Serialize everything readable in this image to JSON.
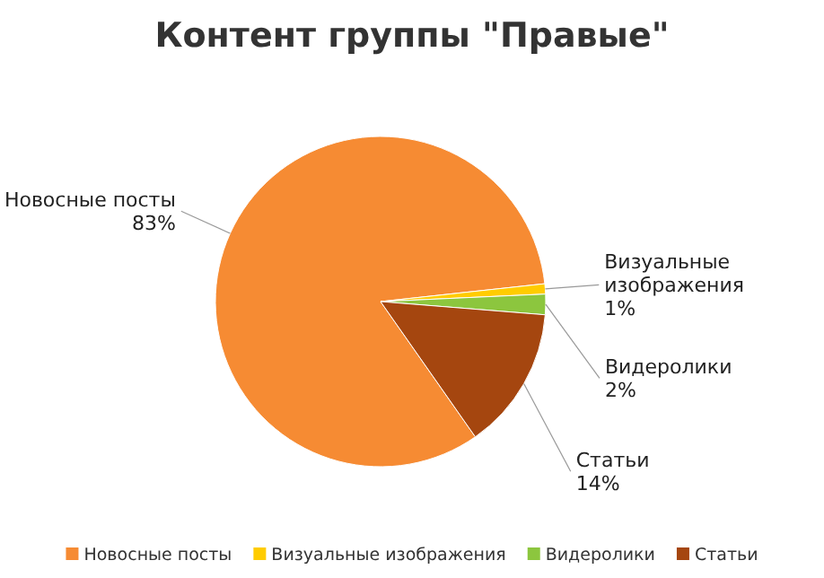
{
  "chart_data": {
    "type": "pie",
    "title": "Контент группы \"Правые\"",
    "categories": [
      "Новосные посты",
      "Визуальные изображения",
      "Видеролики",
      "Статьи"
    ],
    "values": [
      83,
      1,
      2,
      14
    ],
    "value_labels": [
      "83%",
      "1%",
      "2%",
      "14%"
    ],
    "colors": [
      "#f68b33",
      "#ffcc00",
      "#8cc63e",
      "#a5460f"
    ],
    "legend": "bottom"
  }
}
